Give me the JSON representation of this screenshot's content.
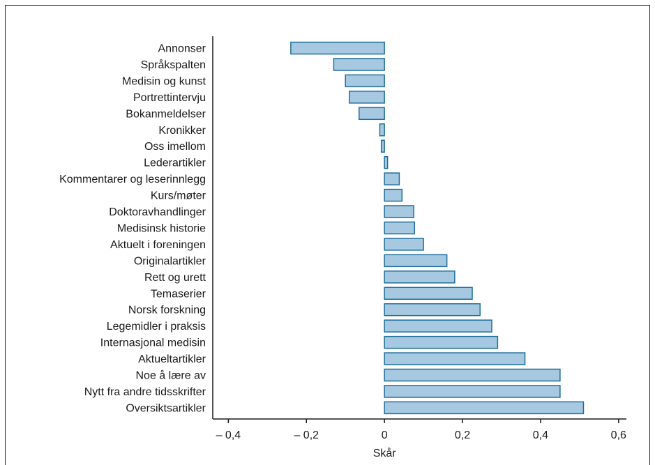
{
  "chart_data": {
    "type": "bar",
    "orientation": "horizontal",
    "categories": [
      "Annonser",
      "Språkspalten",
      "Medisin og kunst",
      "Portrettintervju",
      "Bokanmeldelser",
      "Kronikker",
      "Oss imellom",
      "Lederartikler",
      "Kommentarer og leserinnlegg",
      "Kurs/møter",
      "Doktoravhandlinger",
      "Medisinsk historie",
      "Aktuelt i foreningen",
      "Originalartikler",
      "Rett og urett",
      "Temaserier",
      "Norsk forskning",
      "Legemidler i praksis",
      "Internasjonal medisin",
      "Aktueltartikler",
      "Noe å lære av",
      "Nytt fra andre tidsskrifter",
      "Oversiktsartikler"
    ],
    "values": [
      -0.24,
      -0.13,
      -0.1,
      -0.09,
      -0.065,
      -0.012,
      -0.008,
      0.008,
      0.038,
      0.045,
      0.075,
      0.077,
      0.1,
      0.16,
      0.18,
      0.225,
      0.245,
      0.275,
      0.29,
      0.36,
      0.45,
      0.45,
      0.51
    ],
    "xlabel": "Skår",
    "ylabel": "",
    "title": "",
    "xlim": [
      -0.44,
      0.62
    ],
    "xticks": [
      -0.4,
      -0.2,
      0,
      0.2,
      0.4,
      0.6
    ],
    "xtick_labels": [
      "– 0,4",
      "– 0,2",
      "0",
      "0,2",
      "0,4",
      "0,6"
    ],
    "grid": false,
    "colors": {
      "bar_fill": "#a6c8e0",
      "bar_stroke": "#1f6f99",
      "axis": "#1a1a1a"
    }
  }
}
